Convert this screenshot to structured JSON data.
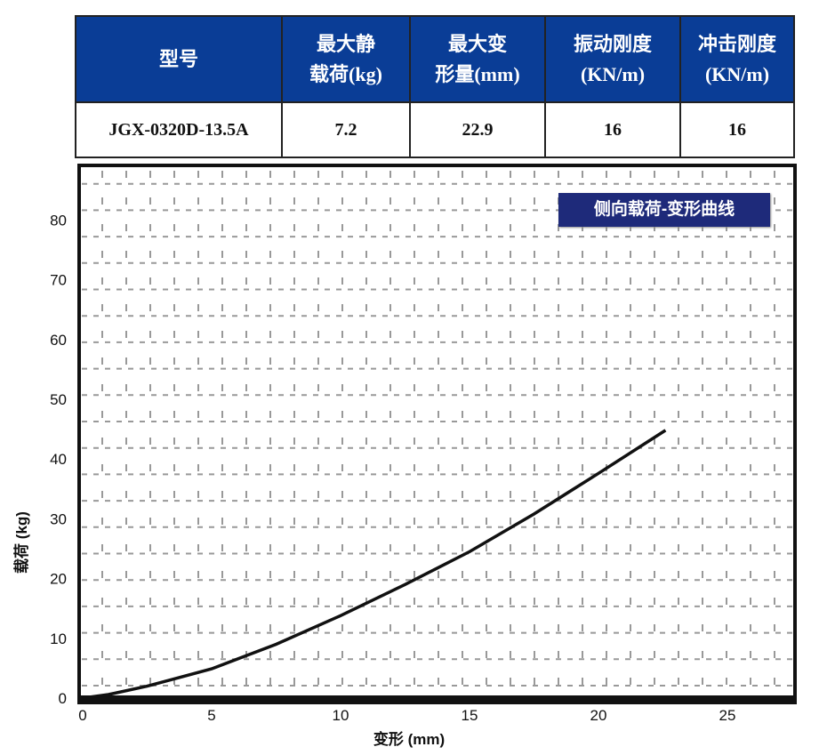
{
  "table": {
    "headers": [
      "型号",
      "最大静\n载荷(kg)",
      "最大变\n形量(mm)",
      "振动刚度\n(KN/m)",
      "冲击刚度\n(KN/m)"
    ],
    "header_lines": [
      [
        "型号"
      ],
      [
        "最大静",
        "载荷(kg)"
      ],
      [
        "最大变",
        "形量(mm)"
      ],
      [
        "振动刚度",
        "(KN/m)"
      ],
      [
        "冲击刚度",
        "(KN/m)"
      ]
    ],
    "row": [
      "JGX-0320D-13.5A",
      "7.2",
      "22.9",
      "16",
      "16"
    ],
    "header_color": "#0a3d96"
  },
  "chart_data": {
    "type": "line",
    "title": "侧向载荷-变形曲线",
    "xlabel": "变形 (mm)",
    "ylabel": "载荷 (kg)",
    "xlim": [
      0,
      27.6
    ],
    "ylim": [
      0,
      88.5
    ],
    "xticks": [
      "0",
      "5",
      "10",
      "15",
      "20",
      "25"
    ],
    "yticks": [
      "0",
      "10",
      "20",
      "30",
      "40",
      "50",
      "60",
      "70",
      "80"
    ],
    "grid": true,
    "legend": "top-right",
    "series": [
      {
        "x": [
          0,
          1,
          2.5,
          5,
          7.5,
          10,
          12.5,
          15,
          17.5,
          20,
          22.6
        ],
        "y": [
          0,
          0.6,
          2,
          4.9,
          9,
          13.8,
          19,
          24.5,
          30.8,
          37.6,
          44.8
        ],
        "color": "#111111"
      }
    ]
  }
}
